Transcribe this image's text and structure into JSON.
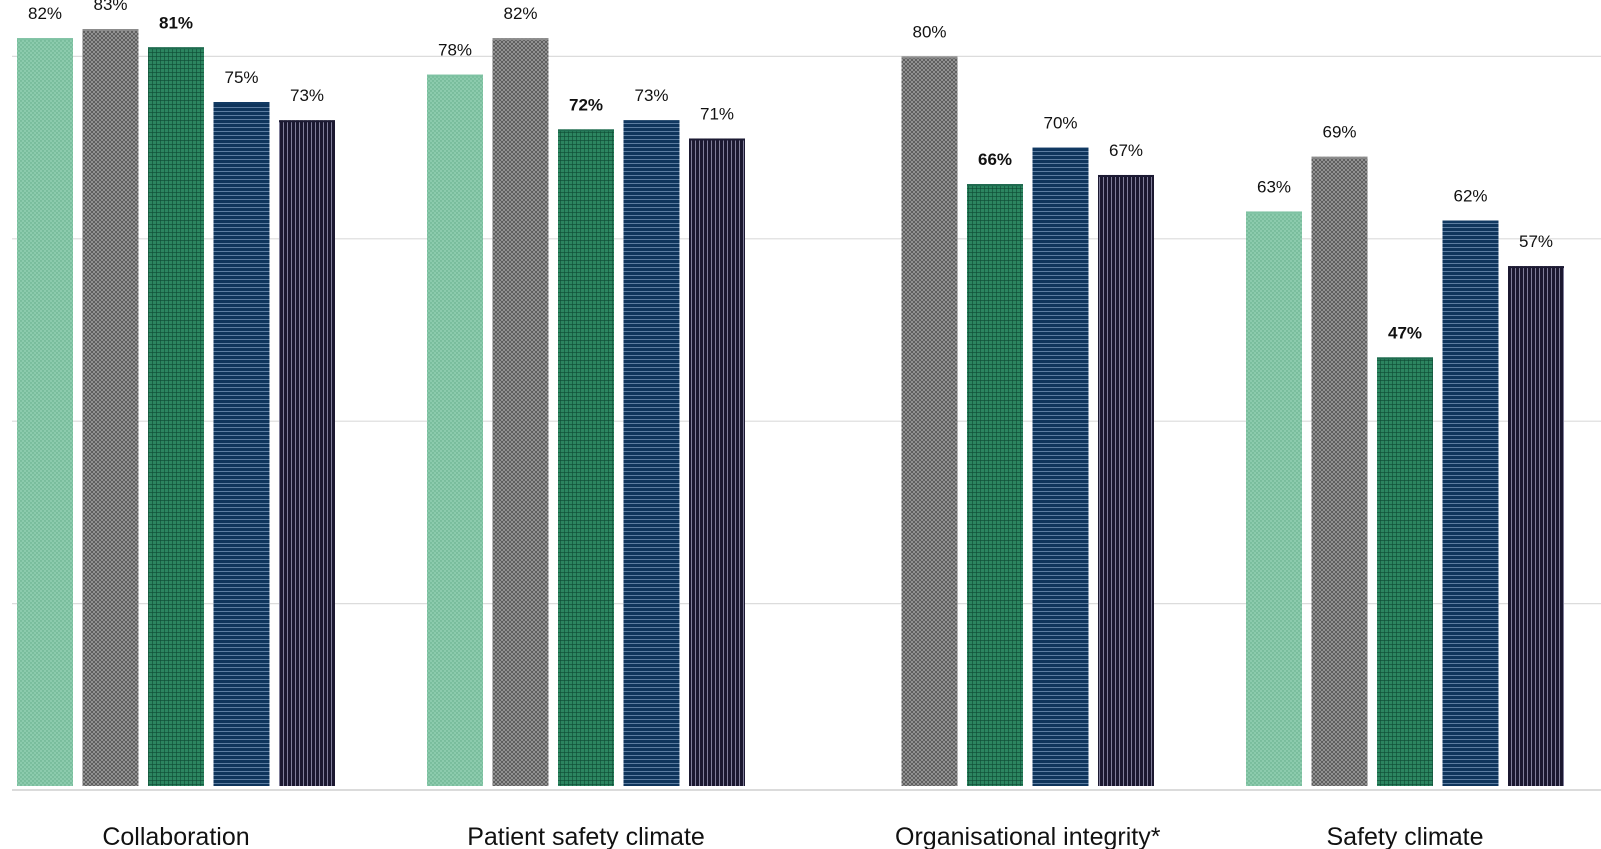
{
  "chart_data": {
    "type": "bar",
    "title": "",
    "xlabel": "",
    "ylabel": "",
    "ylim": [
      0,
      100
    ],
    "grid": true,
    "legend": "none",
    "categories": [
      "Collaboration",
      "Patient safety climate",
      "Organisational integrity*",
      "Safety climate"
    ],
    "series": [
      {
        "color": "#7fc2a3",
        "pattern": "dots-light",
        "bold_labels": false,
        "values": [
          82,
          78,
          null,
          63
        ],
        "labels": [
          "82%",
          "78%",
          "",
          "63%"
        ]
      },
      {
        "color": "#8c8c8c",
        "pattern": "crosshatch-grey",
        "bold_labels": false,
        "values": [
          83,
          82,
          80,
          69
        ],
        "labels": [
          "83%",
          "82%",
          "80%",
          "69%"
        ]
      },
      {
        "color": "#1f6b4f",
        "pattern": "grid-green",
        "bold_labels": true,
        "values": [
          81,
          72,
          66,
          47
        ],
        "labels": [
          "81%",
          "72%",
          "66%",
          "47%"
        ]
      },
      {
        "color": "#123a63",
        "pattern": "horizontal-lines-navy",
        "bold_labels": false,
        "values": [
          75,
          73,
          70,
          62
        ],
        "labels": [
          "75%",
          "73%",
          "70%",
          "62%"
        ]
      },
      {
        "color": "#1c1a33",
        "pattern": "vertical-lines-dark",
        "bold_labels": false,
        "values": [
          73,
          71,
          67,
          57
        ],
        "labels": [
          "73%",
          "71%",
          "67%",
          "57%"
        ]
      }
    ]
  }
}
